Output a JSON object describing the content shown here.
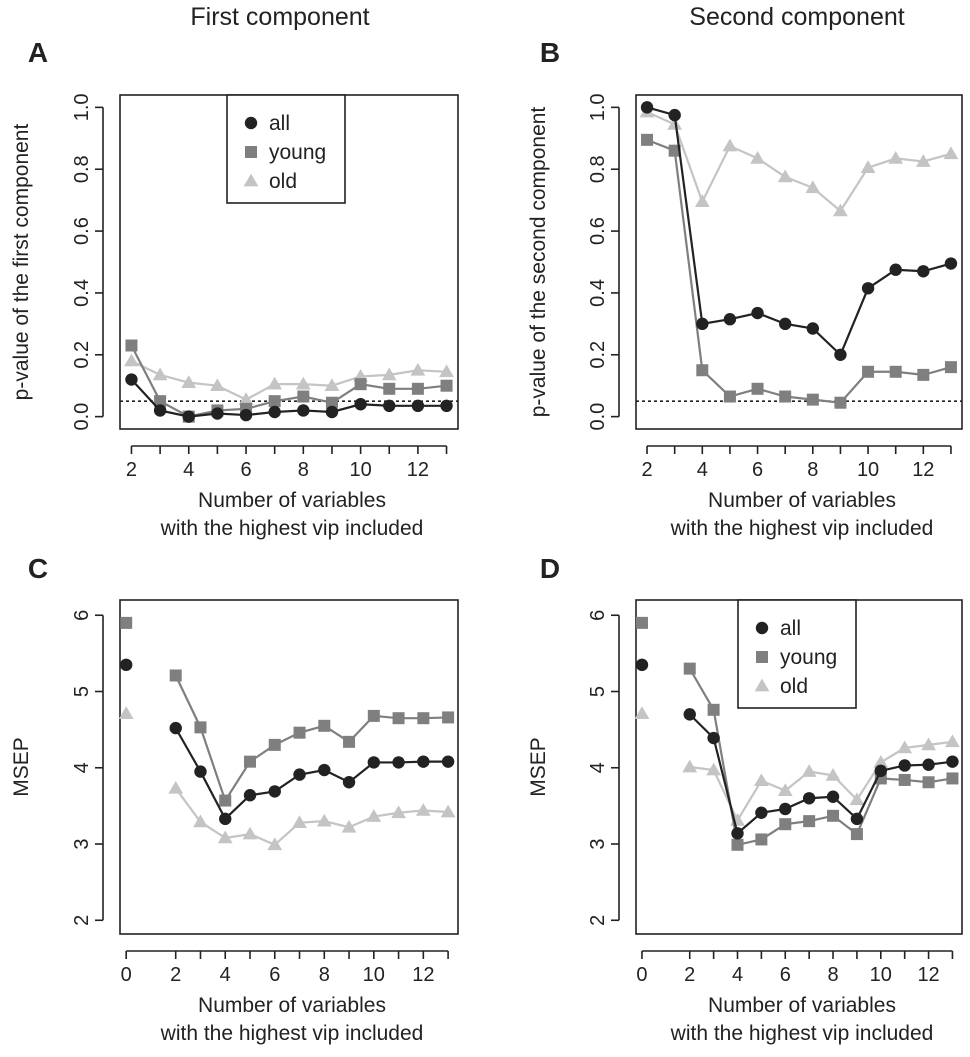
{
  "column_titles": [
    "First component",
    "Second component"
  ],
  "colors": {
    "all": "#222222",
    "young": "#7f7f7f",
    "old": "#c4c4c4",
    "threshold": "#222222"
  },
  "series_names": {
    "all": "all",
    "young": "young",
    "old": "old"
  },
  "chart_data": [
    {
      "panel": "A",
      "type": "line",
      "title": "First component",
      "ylabel": "p-value of the first component",
      "xlabel": [
        "Number of variables",
        "with the highest vip included"
      ],
      "xlim": [
        1.6,
        13.4
      ],
      "ylim": [
        -0.04,
        1.04
      ],
      "x_ticks": [
        2,
        4,
        6,
        8,
        10,
        12
      ],
      "y_ticks": [
        0.0,
        0.2,
        0.4,
        0.6,
        0.8,
        1.0
      ],
      "y_tick_labels": [
        "0.0",
        "0.2",
        "0.4",
        "0.6",
        "0.8",
        "1.0"
      ],
      "threshold": 0.05,
      "legend": true,
      "legend_position": "top-center",
      "series": [
        {
          "name": "all",
          "marker": "circle",
          "x": [
            2,
            3,
            4,
            5,
            6,
            7,
            8,
            9,
            10,
            11,
            12,
            13
          ],
          "values": [
            0.12,
            0.02,
            0.0,
            0.01,
            0.005,
            0.015,
            0.02,
            0.015,
            0.04,
            0.035,
            0.035,
            0.035
          ]
        },
        {
          "name": "young",
          "marker": "square",
          "x": [
            2,
            3,
            4,
            5,
            6,
            7,
            8,
            9,
            10,
            11,
            12,
            13
          ],
          "values": [
            0.23,
            0.05,
            0.0,
            0.02,
            0.025,
            0.05,
            0.065,
            0.045,
            0.105,
            0.09,
            0.09,
            0.1
          ]
        },
        {
          "name": "old",
          "marker": "triangle",
          "x": [
            2,
            3,
            4,
            5,
            6,
            7,
            8,
            9,
            10,
            11,
            12,
            13
          ],
          "values": [
            0.18,
            0.135,
            0.11,
            0.1,
            0.055,
            0.105,
            0.105,
            0.1,
            0.13,
            0.135,
            0.15,
            0.145
          ]
        }
      ]
    },
    {
      "panel": "B",
      "type": "line",
      "title": "Second component",
      "ylabel": "p-value of the second component",
      "xlabel": [
        "Number of variables",
        "with the highest vip included"
      ],
      "xlim": [
        1.6,
        13.4
      ],
      "ylim": [
        -0.04,
        1.04
      ],
      "x_ticks": [
        2,
        4,
        6,
        8,
        10,
        12
      ],
      "y_ticks": [
        0.0,
        0.2,
        0.4,
        0.6,
        0.8,
        1.0
      ],
      "y_tick_labels": [
        "0.0",
        "0.2",
        "0.4",
        "0.6",
        "0.8",
        "1.0"
      ],
      "threshold": 0.05,
      "legend": false,
      "series": [
        {
          "name": "all",
          "marker": "circle",
          "x": [
            2,
            3,
            4,
            5,
            6,
            7,
            8,
            9,
            10,
            11,
            12,
            13
          ],
          "values": [
            1.0,
            0.975,
            0.3,
            0.315,
            0.335,
            0.3,
            0.285,
            0.2,
            0.415,
            0.475,
            0.47,
            0.495
          ]
        },
        {
          "name": "young",
          "marker": "square",
          "x": [
            2,
            3,
            4,
            5,
            6,
            7,
            8,
            9,
            10,
            11,
            12,
            13
          ],
          "values": [
            0.895,
            0.86,
            0.15,
            0.065,
            0.09,
            0.065,
            0.055,
            0.045,
            0.145,
            0.145,
            0.135,
            0.16
          ]
        },
        {
          "name": "old",
          "marker": "triangle",
          "x": [
            2,
            3,
            4,
            5,
            6,
            7,
            8,
            9,
            10,
            11,
            12,
            13
          ],
          "values": [
            0.985,
            0.945,
            0.695,
            0.875,
            0.835,
            0.775,
            0.74,
            0.665,
            0.805,
            0.835,
            0.825,
            0.85
          ]
        }
      ]
    },
    {
      "panel": "C",
      "type": "line",
      "ylabel": "MSEP",
      "xlabel": [
        "Number of variables",
        "with the highest vip included"
      ],
      "xlim": [
        -0.25,
        13.4
      ],
      "ylim": [
        1.82,
        6.2
      ],
      "x_ticks": [
        0,
        2,
        4,
        6,
        8,
        10,
        12
      ],
      "y_ticks": [
        2,
        3,
        4,
        5,
        6
      ],
      "y_tick_labels": [
        "2",
        "3",
        "4",
        "5",
        "6"
      ],
      "legend": false,
      "series": [
        {
          "name": "all",
          "marker": "circle",
          "x": [
            0,
            2,
            3,
            4,
            5,
            6,
            7,
            8,
            9,
            10,
            11,
            12,
            13
          ],
          "values": [
            5.35,
            4.52,
            3.95,
            3.33,
            3.64,
            3.69,
            3.91,
            3.97,
            3.81,
            4.07,
            4.07,
            4.08,
            4.08
          ]
        },
        {
          "name": "young",
          "marker": "square",
          "x": [
            0,
            2,
            3,
            4,
            5,
            6,
            7,
            8,
            9,
            10,
            11,
            12,
            13
          ],
          "values": [
            5.9,
            5.21,
            4.53,
            3.57,
            4.08,
            4.3,
            4.46,
            4.55,
            4.34,
            4.68,
            4.65,
            4.65,
            4.66
          ]
        },
        {
          "name": "old",
          "marker": "triangle",
          "x": [
            0,
            2,
            3,
            4,
            5,
            6,
            7,
            8,
            9,
            10,
            11,
            12,
            13
          ],
          "values": [
            4.71,
            3.73,
            3.29,
            3.08,
            3.13,
            2.99,
            3.28,
            3.3,
            3.22,
            3.36,
            3.41,
            3.44,
            3.42
          ]
        }
      ]
    },
    {
      "panel": "D",
      "type": "line",
      "ylabel": "MSEP",
      "xlabel": [
        "Number of variables",
        "with the highest vip included"
      ],
      "xlim": [
        -0.25,
        13.4
      ],
      "ylim": [
        1.82,
        6.2
      ],
      "x_ticks": [
        0,
        2,
        4,
        6,
        8,
        10,
        12
      ],
      "y_ticks": [
        2,
        3,
        4,
        5,
        6
      ],
      "y_tick_labels": [
        "2",
        "3",
        "4",
        "5",
        "6"
      ],
      "legend": true,
      "legend_position": "top-right",
      "series": [
        {
          "name": "all",
          "marker": "circle",
          "x": [
            0,
            2,
            3,
            4,
            5,
            6,
            7,
            8,
            9,
            10,
            11,
            12,
            13
          ],
          "values": [
            5.35,
            4.7,
            4.39,
            3.14,
            3.41,
            3.46,
            3.6,
            3.62,
            3.33,
            3.96,
            4.03,
            4.04,
            4.08
          ]
        },
        {
          "name": "young",
          "marker": "square",
          "x": [
            0,
            2,
            3,
            4,
            5,
            6,
            7,
            8,
            9,
            10,
            11,
            12,
            13
          ],
          "values": [
            5.9,
            5.3,
            4.76,
            2.99,
            3.06,
            3.26,
            3.3,
            3.37,
            3.13,
            3.86,
            3.84,
            3.81,
            3.86
          ]
        },
        {
          "name": "old",
          "marker": "triangle",
          "x": [
            0,
            2,
            3,
            4,
            5,
            6,
            7,
            8,
            9,
            10,
            11,
            12,
            13
          ],
          "values": [
            4.71,
            4.01,
            3.97,
            3.31,
            3.83,
            3.7,
            3.95,
            3.9,
            3.58,
            4.07,
            4.26,
            4.3,
            4.34
          ]
        }
      ]
    }
  ]
}
